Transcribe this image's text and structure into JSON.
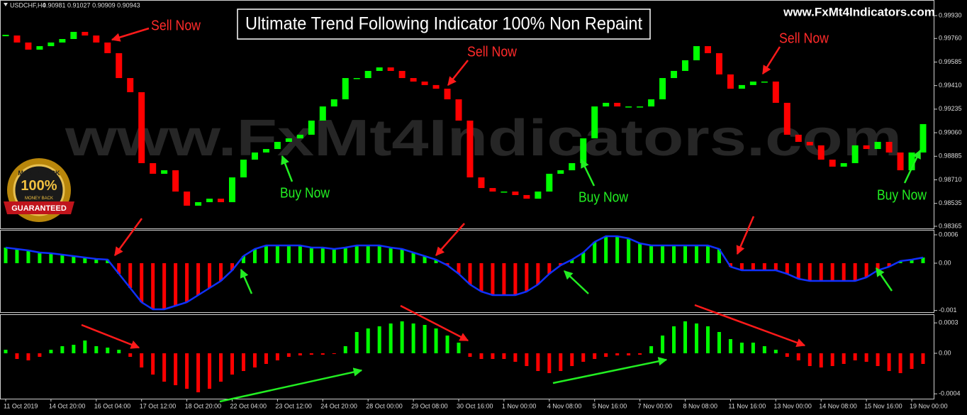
{
  "header": {
    "symbol": "USDCHF,H4",
    "quote": "0.90981 0.91027 0.90909 0.90943",
    "title": "Ultimate Trend Following Indicator 100% Non Repaint",
    "site": "www.FxMt4Indicators.com",
    "watermark": "www.FxMt4Indicators.com",
    "badge_top": "MONEYBACK",
    "badge_mid": "100%",
    "badge_small": "MONEY BACK",
    "badge_bottom": "GUARANTEED"
  },
  "chart_data": [
    {
      "type": "candlestick",
      "close": [
        0.99782,
        0.9973,
        0.99677,
        0.99703,
        0.9973,
        0.99756,
        0.99809,
        0.99782,
        0.9973,
        0.99651,
        0.99466,
        0.99361,
        0.98834,
        0.98755,
        0.98781,
        0.98623,
        0.98518,
        0.98544,
        0.9857,
        0.98544,
        0.98728,
        0.9886,
        0.98913,
        0.98939,
        0.98992,
        0.99018,
        0.99045,
        0.9915,
        0.99255,
        0.99308,
        0.99466,
        0.99466,
        0.99519,
        0.99545,
        0.99519,
        0.99466,
        0.9944,
        0.99414,
        0.99387,
        0.99308,
        0.9915,
        0.98728,
        0.98649,
        0.98623,
        0.98623,
        0.98597,
        0.9857,
        0.98623,
        0.98755,
        0.98781,
        0.98834,
        0.99018,
        0.99255,
        0.99282,
        0.99255,
        0.99255,
        0.99255,
        0.99308,
        0.99466,
        0.99519,
        0.99598,
        0.99703,
        0.99651,
        0.99493,
        0.99387,
        0.99414,
        0.9944,
        0.9944,
        0.99282,
        0.99045,
        0.98992,
        0.98966,
        0.9886,
        0.98808,
        0.98834,
        0.98966,
        0.98939,
        0.98992,
        0.98913,
        0.98781,
        0.98913,
        0.99124
      ],
      "up_color": "#00ff00",
      "down_color": "#ff0000",
      "xlim": [
        -0.5,
        81.5
      ],
      "ylim": [
        0.98349,
        1.0003
      ],
      "yticks": [
        {
          "value": 0.9993,
          "label": "0.99930"
        },
        {
          "value": 0.9976,
          "label": "0.99760"
        },
        {
          "value": 0.99585,
          "label": "0.99585"
        },
        {
          "value": 0.9941,
          "label": "0.99410"
        },
        {
          "value": 0.99235,
          "label": "0.99235"
        },
        {
          "value": 0.9906,
          "label": "0.99060"
        },
        {
          "value": 0.98885,
          "label": "0.98885"
        },
        {
          "value": 0.9871,
          "label": "0.98710"
        },
        {
          "value": 0.98535,
          "label": "0.98535"
        },
        {
          "value": 0.98365,
          "label": "0.98365"
        }
      ],
      "annotations": [
        {
          "text": "Sell Now",
          "color": "#ff2a2a"
        },
        {
          "text": "Sell Now",
          "color": "#ff2a2a"
        },
        {
          "text": "Sell Now",
          "color": "#ff2a2a"
        },
        {
          "text": "Buy Now",
          "color": "#22ee22"
        },
        {
          "text": "Buy Now",
          "color": "#22ee22"
        },
        {
          "text": "Buy Now",
          "color": "#22ee22"
        }
      ]
    },
    {
      "type": "histogram",
      "values": [
        0.00033,
        0.0003,
        0.00027,
        0.000225,
        0.00021,
        0.00018,
        0.00015,
        0.00012,
        9e-05,
        7.5e-05,
        -0.000225,
        -0.000525,
        -0.000825,
        -0.000975,
        -0.000975,
        -0.0009,
        -0.000825,
        -0.000675,
        -0.000525,
        -0.000375,
        -0.00015,
        0.00015,
        0.0003,
        0.000375,
        0.000375,
        0.000375,
        0.000375,
        0.00033,
        0.00033,
        0.0003,
        0.00033,
        0.000375,
        0.000375,
        0.000375,
        0.00033,
        0.0003,
        0.000225,
        0.00015,
        7.5e-05,
        -4.5e-05,
        -0.000225,
        -0.00045,
        -0.0006,
        -0.000675,
        -0.000675,
        -0.000675,
        -0.0006,
        -0.00045,
        -0.000225,
        -4.5e-05,
        7.5e-05,
        0.000225,
        0.00045,
        0.00057,
        0.00057,
        0.000525,
        0.00042,
        0.000375,
        0.000375,
        0.000375,
        0.000375,
        0.000375,
        0.000375,
        0.0003,
        -7.5e-05,
        -0.00015,
        -0.00015,
        -0.00015,
        -0.00015,
        -0.000225,
        -0.00033,
        -0.000375,
        -0.000375,
        -0.000375,
        -0.000375,
        -0.000375,
        -0.0003,
        -0.00015,
        -7.5e-05,
        4.5e-05,
        7.5e-05,
        0.00012
      ],
      "up_color": "#00ff00",
      "down_color": "#ff0000",
      "line_color": "#1030ff",
      "xlim": [
        -0.5,
        81.5
      ],
      "ylim": [
        -0.001035,
        0.00069
      ],
      "yticks": [
        0.0006,
        {
          "value": 0,
          "label": "0.00"
        },
        -0.001
      ]
    },
    {
      "type": "histogram",
      "values": [
        3.5e-05,
        -5.6e-05,
        -7e-05,
        -3.5e-05,
        3.5e-05,
        7e-05,
        8.4e-05,
        0.000126,
        7e-05,
        5.6e-05,
        3.5e-05,
        -3.5e-05,
        -0.00014,
        -0.00021,
        -0.00028,
        -0.000315,
        -0.00035,
        -0.000385,
        -0.00035,
        -0.00028,
        -0.00021,
        -0.000175,
        -0.00014,
        -0.000105,
        -7e-05,
        -3.5e-05,
        -2.1e-05,
        -1.4e-05,
        -1.4e-05,
        -7e-06,
        7e-05,
        0.00021,
        0.000245,
        0.000266,
        0.000294,
        0.000315,
        0.000294,
        0.00028,
        0.000245,
        0.000175,
        0.000105,
        -3.5e-05,
        -5.6e-05,
        -5.6e-05,
        -5.6e-05,
        -8.4e-05,
        -0.000126,
        -0.000175,
        -0.000196,
        -0.000175,
        -0.000126,
        -8.4e-05,
        -5.6e-05,
        -3.5e-05,
        -2.1e-05,
        -2.1e-05,
        -1.4e-05,
        7e-05,
        0.000175,
        0.000266,
        0.000315,
        0.000294,
        0.000266,
        0.00021,
        0.00014,
        0.000105,
        0.000105,
        7e-05,
        3.5e-05,
        -3.5e-05,
        -7e-05,
        -0.000126,
        -0.00014,
        -0.000126,
        -0.000105,
        -7e-05,
        -8.4e-05,
        -0.000126,
        -0.000175,
        -0.000196,
        -0.000154,
        -0.000105
      ],
      "up_color": "#00ff00",
      "down_color": "#ff0000",
      "xlim": [
        -0.5,
        81.5
      ],
      "ylim": [
        -0.000448,
        0.000371
      ],
      "yticks": [
        0.0003,
        {
          "value": 0,
          "label": "0.00"
        },
        -0.0004
      ],
      "xticks": [
        {
          "value": 0,
          "label": "11 Oct 2019"
        },
        {
          "value": 4,
          "label": "14 Oct 20:00"
        },
        {
          "value": 8,
          "label": "16 Oct 04:00"
        },
        {
          "value": 12,
          "label": "17 Oct 12:00"
        },
        {
          "value": 16,
          "label": "18 Oct 20:00"
        },
        {
          "value": 20,
          "label": "22 Oct 04:00"
        },
        {
          "value": 24,
          "label": "23 Oct 12:00"
        },
        {
          "value": 28,
          "label": "24 Oct 20:00"
        },
        {
          "value": 32,
          "label": "28 Oct 00:00"
        },
        {
          "value": 36,
          "label": "29 Oct 08:00"
        },
        {
          "value": 40,
          "label": "30 Oct 16:00"
        },
        {
          "value": 44,
          "label": "1 Nov 00:00"
        },
        {
          "value": 48,
          "label": "4 Nov 08:00"
        },
        {
          "value": 52,
          "label": "5 Nov 16:00"
        },
        {
          "value": 56,
          "label": "7 Nov 00:00"
        },
        {
          "value": 60,
          "label": "8 Nov 08:00"
        },
        {
          "value": 64,
          "label": "11 Nov 16:00"
        },
        {
          "value": 68,
          "label": "13 Nov 00:00"
        },
        {
          "value": 72,
          "label": "14 Nov 08:00"
        },
        {
          "value": 76,
          "label": "15 Nov 16:00"
        },
        {
          "value": 80,
          "label": "19 Nov 00:00"
        }
      ]
    }
  ]
}
